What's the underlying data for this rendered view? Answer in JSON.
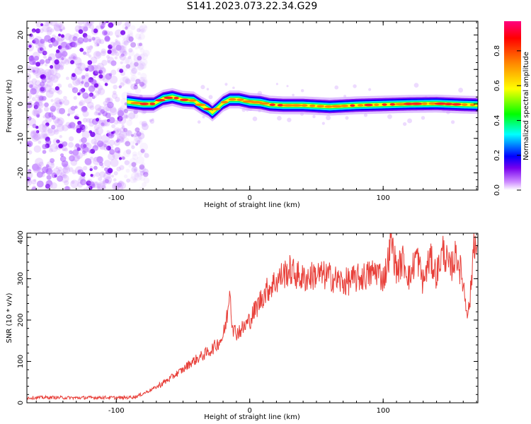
{
  "title": "S141.2023.073.22.34.G29",
  "chart_data": [
    {
      "type": "heatmap",
      "xlabel": "Height of straight line (km)",
      "ylabel": "Frequency (Hz)",
      "xlim": [
        -167,
        171
      ],
      "ylim": [
        -25,
        24
      ],
      "x_ticks": [
        -100,
        0,
        100
      ],
      "y_ticks": [
        -20,
        -10,
        0,
        10,
        20
      ],
      "colorbar": {
        "label": "Normalized spectral amplitude",
        "range": [
          0,
          0.97
        ],
        "ticks": [
          "0.0",
          "0.2",
          "0.4",
          "0.6",
          "0.8"
        ],
        "colors": [
          "#ffffff",
          "#cc88ff",
          "#7700ee",
          "#0000ff",
          "#00ffff",
          "#00ff00",
          "#ffff00",
          "#ff8800",
          "#ff0000",
          "#ff0080"
        ]
      },
      "noise_region_x": [
        -167,
        -85
      ],
      "ridge": {
        "x": [
          -92,
          -80,
          -72,
          -65,
          -58,
          -50,
          -42,
          -36,
          -31,
          -28,
          -25,
          -20,
          -15,
          -8,
          0,
          8,
          15,
          25,
          40,
          60,
          80,
          100,
          120,
          140,
          160,
          171
        ],
        "y": [
          0.6,
          0.0,
          0.0,
          1.5,
          2.0,
          1.2,
          1.0,
          -0.5,
          -1.5,
          -2.5,
          -1.5,
          0.3,
          1.3,
          1.3,
          0.6,
          0.4,
          -0.2,
          -0.4,
          -0.4,
          -0.8,
          -0.4,
          -0.2,
          0.0,
          0.1,
          -0.2,
          -0.3
        ]
      }
    },
    {
      "type": "line",
      "xlabel": "Height of straight line (km)",
      "ylabel": "SNR (10 * v/v)",
      "xlim": [
        -167,
        171
      ],
      "ylim": [
        0,
        410
      ],
      "x_ticks": [
        -100,
        0,
        100
      ],
      "y_ticks": [
        0,
        100,
        200,
        300,
        400
      ],
      "color": "#e8403a",
      "x": [
        -167,
        -150,
        -130,
        -110,
        -95,
        -85,
        -80,
        -75,
        -70,
        -65,
        -60,
        -55,
        -50,
        -45,
        -40,
        -35,
        -30,
        -25,
        -20,
        -18,
        -16,
        -15,
        -14,
        -12,
        -10,
        -5,
        0,
        5,
        10,
        15,
        20,
        25,
        30,
        40,
        50,
        60,
        70,
        80,
        90,
        95,
        100,
        103,
        106,
        110,
        115,
        120,
        125,
        130,
        135,
        140,
        145,
        150,
        155,
        160,
        162,
        164,
        166,
        168,
        171
      ],
      "y": [
        12,
        13,
        12,
        13,
        12,
        15,
        22,
        30,
        38,
        48,
        58,
        70,
        80,
        95,
        105,
        115,
        125,
        140,
        160,
        190,
        230,
        300,
        220,
        175,
        170,
        180,
        200,
        230,
        260,
        280,
        295,
        310,
        320,
        300,
        310,
        305,
        290,
        300,
        310,
        320,
        300,
        330,
        395,
        320,
        345,
        300,
        360,
        290,
        350,
        310,
        370,
        320,
        360,
        290,
        240,
        220,
        280,
        405,
        340
      ]
    }
  ]
}
